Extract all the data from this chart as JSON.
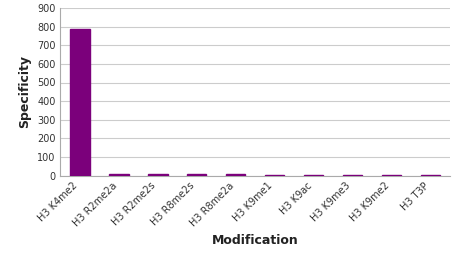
{
  "categories": [
    "H3 K4me2",
    "H3 R2me2a",
    "H3 R2me2s",
    "H3 R8me2s",
    "H3 R8me2a",
    "H3 K9me1",
    "H3 K9ac",
    "H3 K9me3",
    "H3 K9me2",
    "H3 T3P"
  ],
  "values": [
    785,
    8,
    8,
    10,
    8,
    2,
    1,
    1,
    1,
    1
  ],
  "bar_color": "#7B007B",
  "bar_edge_color": "#7B007B",
  "xlabel": "Modification",
  "ylabel": "Specificity",
  "ylim": [
    0,
    900
  ],
  "yticks": [
    0,
    100,
    200,
    300,
    400,
    500,
    600,
    700,
    800,
    900
  ],
  "grid_color": "#cccccc",
  "background_color": "#ffffff",
  "xlabel_fontsize": 9,
  "ylabel_fontsize": 9,
  "tick_fontsize": 7,
  "label_fontweight": "bold",
  "bar_width": 0.5
}
